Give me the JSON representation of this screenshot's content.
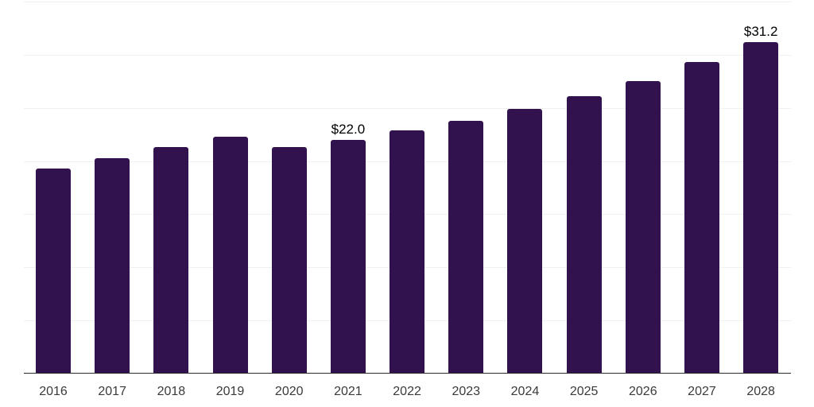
{
  "chart": {
    "background_color": "#ffffff",
    "bar_color": "#32124e",
    "gridline_color": "#f0f0f0",
    "axis_line_color": "#2b2b2b",
    "tick_label_color": "#3a3a3a",
    "value_label_color": "#000000"
  },
  "chart_data": {
    "type": "bar",
    "title": "",
    "xlabel": "",
    "ylabel": "",
    "categories": [
      "2016",
      "2017",
      "2018",
      "2019",
      "2020",
      "2021",
      "2022",
      "2023",
      "2024",
      "2025",
      "2026",
      "2027",
      "2028"
    ],
    "values": [
      19.3,
      20.3,
      21.3,
      22.3,
      21.3,
      22.0,
      22.9,
      23.8,
      24.9,
      26.1,
      27.5,
      29.3,
      31.2
    ],
    "data_labels": [
      null,
      null,
      null,
      null,
      null,
      "$22.0",
      null,
      null,
      null,
      null,
      null,
      null,
      "$31.2"
    ],
    "ylim": [
      0,
      35
    ],
    "gridline_step": 5,
    "grid": "horizontal",
    "legend_position": "none",
    "y_axis_labels_visible": false
  }
}
